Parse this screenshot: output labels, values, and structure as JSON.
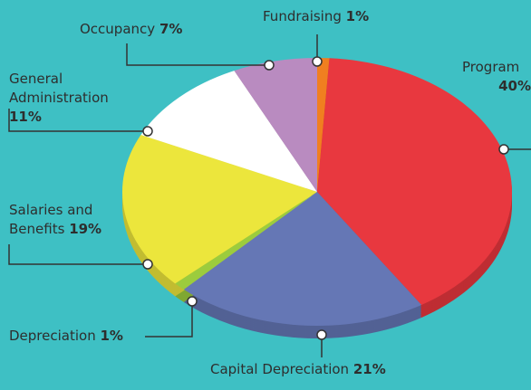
{
  "chart_data": {
    "type": "pie",
    "categories": [
      "Fundraising",
      "Program",
      "Capital Depreciation",
      "Depreciation",
      "Salaries and Benefits",
      "General Administration",
      "Occupancy"
    ],
    "values": [
      1,
      40,
      21,
      1,
      19,
      11,
      7
    ],
    "value_labels": [
      "1%",
      "40%",
      "21%",
      "1%",
      "19%",
      "11%",
      "7%"
    ],
    "colors": [
      "#f07f20",
      "#e8383f",
      "#6577b5",
      "#9ccc3d",
      "#ece63c",
      "#ffffff",
      "#b98bc0"
    ]
  }
}
